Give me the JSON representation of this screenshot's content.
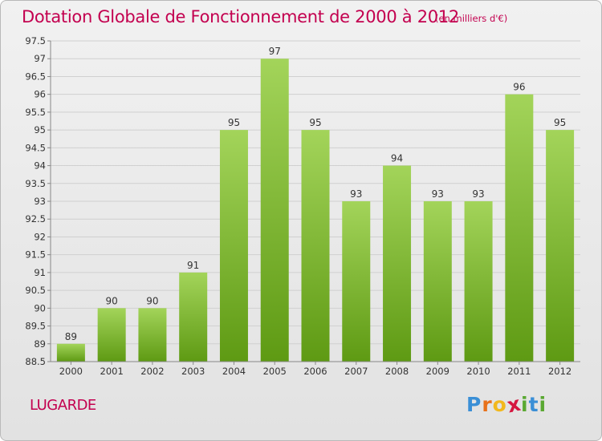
{
  "header": {
    "title": "Dotation Globale de Fonctionnement de 2000 à 2012",
    "unit": "(en milliers d'€)"
  },
  "footer": {
    "commune": "LUGARDE",
    "brand": {
      "letters": [
        "P",
        "r",
        "o",
        "x",
        "i",
        "t",
        "i"
      ],
      "colors": [
        "#3a8fd6",
        "#e8711a",
        "#f2b81c",
        "#d5163f",
        "#5aa832",
        "#3a8fd6",
        "#5aa832"
      ]
    }
  },
  "chart_data": {
    "type": "bar",
    "title": "Dotation Globale de Fonctionnement de 2000 à 2012",
    "xlabel": "",
    "ylabel": "",
    "categories": [
      "2000",
      "2001",
      "2002",
      "2003",
      "2004",
      "2005",
      "2006",
      "2007",
      "2008",
      "2009",
      "2010",
      "2011",
      "2012"
    ],
    "values": [
      89,
      90,
      90,
      91,
      95,
      97,
      95,
      93,
      94,
      93,
      93,
      96,
      95
    ],
    "data_labels": [
      "89",
      "90",
      "90",
      "91",
      "95",
      "97",
      "95",
      "93",
      "94",
      "93",
      "93",
      "96",
      "95"
    ],
    "ylim": [
      88.5,
      97.5
    ],
    "yticks": [
      "88.5",
      "89",
      "89.5",
      "90",
      "90.5",
      "91",
      "91.5",
      "92",
      "92.5",
      "93",
      "93.5",
      "94",
      "94.5",
      "95",
      "95.5",
      "96",
      "96.5",
      "97",
      "97.5"
    ],
    "grid": true,
    "legend": "none",
    "colors": {
      "bar_top": "#a3d45a",
      "bar_bottom": "#5e9a13",
      "axis": "#888888",
      "grid": "#d0d0d0",
      "text": "#333333"
    }
  }
}
